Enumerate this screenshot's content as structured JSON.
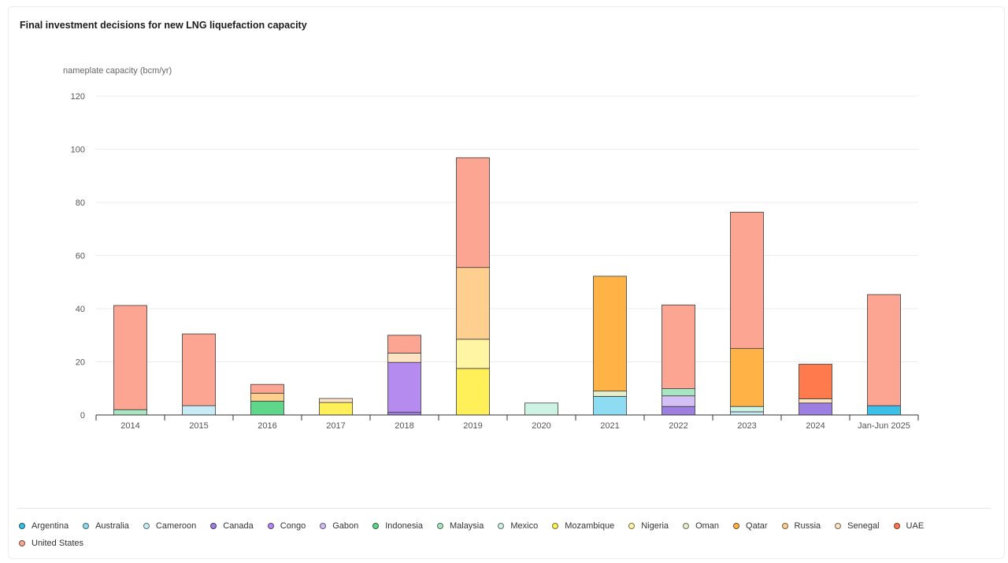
{
  "title": "Final investment decisions for new LNG liquefaction capacity",
  "chart_data": {
    "type": "bar",
    "stacked": true,
    "title": "Final investment decisions for new LNG liquefaction capacity",
    "ylabel": "nameplate capacity (bcm/yr)",
    "xlabel": "",
    "ylim": [
      0,
      120
    ],
    "yticks": [
      0,
      20,
      40,
      60,
      80,
      100,
      120
    ],
    "grid": true,
    "legend_position": "bottom",
    "categories": [
      "2014",
      "2015",
      "2016",
      "2017",
      "2018",
      "2019",
      "2020",
      "2021",
      "2022",
      "2023",
      "2024",
      "Jan-Jun 2025"
    ],
    "series": [
      {
        "name": "Argentina",
        "color": "#3cc0e8",
        "values": [
          0,
          0,
          0,
          0,
          0,
          0,
          0,
          0,
          0,
          0,
          0,
          3.5
        ]
      },
      {
        "name": "Australia",
        "color": "#8edcf2",
        "values": [
          0,
          0,
          0,
          0,
          0,
          0,
          0,
          7,
          0,
          0,
          0,
          0
        ]
      },
      {
        "name": "Cameroon",
        "color": "#c7ebf7",
        "values": [
          0,
          3.5,
          0,
          0,
          0,
          0,
          0,
          0,
          0,
          1.2,
          0,
          0
        ]
      },
      {
        "name": "Canada",
        "color": "#9c7fe0",
        "values": [
          0,
          0,
          0,
          0,
          1,
          0,
          0,
          0,
          3.2,
          0,
          4.5,
          0
        ]
      },
      {
        "name": "Congo",
        "color": "#b58bef",
        "values": [
          0,
          0,
          0,
          0,
          18.8,
          0,
          0,
          0,
          0,
          0,
          0,
          0
        ]
      },
      {
        "name": "Gabon",
        "color": "#d4c0f5",
        "values": [
          0,
          0,
          0,
          0,
          0,
          0,
          0,
          0,
          4,
          0,
          0,
          0
        ]
      },
      {
        "name": "Indonesia",
        "color": "#5fd68a",
        "values": [
          0,
          0,
          5.2,
          0,
          0,
          0,
          0,
          0,
          0,
          0,
          0,
          0
        ]
      },
      {
        "name": "Malaysia",
        "color": "#a8e6c1",
        "values": [
          2,
          0,
          0,
          0,
          0,
          0,
          0,
          0,
          2.7,
          0,
          0,
          0
        ]
      },
      {
        "name": "Mexico",
        "color": "#cdf3e3",
        "values": [
          0,
          0,
          0,
          0,
          0,
          0,
          4.5,
          0,
          0,
          2,
          0,
          0
        ]
      },
      {
        "name": "Mozambique",
        "color": "#fff05a",
        "values": [
          0,
          0,
          0,
          4.7,
          0,
          17.5,
          0,
          0,
          0,
          0,
          0,
          0
        ]
      },
      {
        "name": "Nigeria",
        "color": "#fff5a3",
        "values": [
          0,
          0,
          0,
          0,
          0,
          11,
          0,
          0,
          0,
          0,
          0,
          0
        ]
      },
      {
        "name": "Oman",
        "color": "#e3f0c9",
        "values": [
          0,
          0,
          0,
          0,
          0,
          0,
          0,
          2,
          0,
          0,
          0,
          0
        ]
      },
      {
        "name": "Qatar",
        "color": "#ffb347",
        "values": [
          0,
          0,
          0,
          0,
          0,
          0,
          0,
          43.2,
          0,
          21.8,
          0,
          0
        ]
      },
      {
        "name": "Russia",
        "color": "#ffcf8f",
        "values": [
          0,
          0,
          3,
          0,
          0,
          27,
          0,
          0,
          0,
          0,
          0,
          0
        ]
      },
      {
        "name": "Senegal",
        "color": "#fde3c2",
        "values": [
          0,
          0,
          0,
          1.5,
          3.5,
          0,
          0,
          0,
          0,
          0,
          1.6,
          0
        ]
      },
      {
        "name": "UAE",
        "color": "#ff7a4d",
        "values": [
          0,
          0,
          0,
          0,
          0,
          0,
          0,
          0,
          0,
          0,
          13,
          0
        ]
      },
      {
        "name": "United States",
        "color": "#fca593",
        "values": [
          39.2,
          27,
          3.3,
          0,
          6.7,
          41.3,
          0,
          0,
          31.5,
          51.3,
          0,
          41.8
        ]
      }
    ]
  }
}
